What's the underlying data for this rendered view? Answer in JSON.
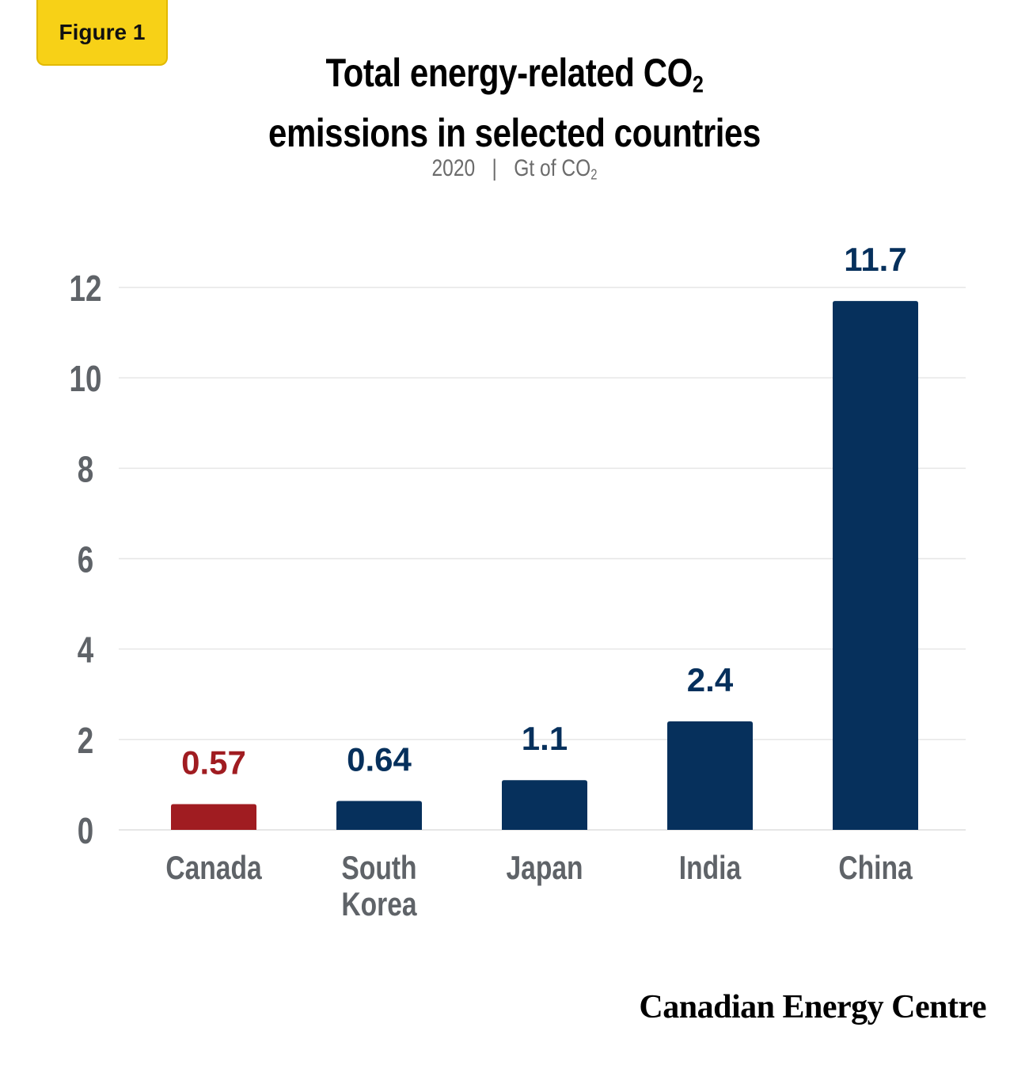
{
  "badge": {
    "label": "Figure 1"
  },
  "header": {
    "title_line1_main": "Total energy-related CO",
    "title_line1_sub": "2",
    "title_line2": "emissions in selected countries",
    "subtitle_year": "2020",
    "subtitle_separator": "|",
    "subtitle_unit_main": "Gt of CO",
    "subtitle_unit_sub": "2"
  },
  "chart_data": {
    "type": "bar",
    "title": "Total energy-related CO2 emissions in selected countries",
    "subtitle": "2020 | Gt of CO2",
    "categories": [
      "Canada",
      "South Korea",
      "Japan",
      "India",
      "China"
    ],
    "category_label_lines": [
      [
        "Canada"
      ],
      [
        "South",
        "Korea"
      ],
      [
        "Japan"
      ],
      [
        "India"
      ],
      [
        "China"
      ]
    ],
    "values": [
      0.57,
      0.64,
      1.1,
      2.4,
      11.7
    ],
    "data_labels": [
      "0.57",
      "0.64",
      "1.1",
      "2.4",
      "11.7"
    ],
    "yticks": [
      0,
      2,
      4,
      6,
      8,
      10,
      12
    ],
    "ylim": [
      0,
      12
    ],
    "grid": true,
    "colors": {
      "highlight": "#a01c21",
      "default": "#06305c",
      "axis_text": "#5f6368",
      "grid": "#e6e6e6"
    },
    "highlight_category": "Canada"
  },
  "footer": {
    "brand": "Canadian Energy Centre"
  }
}
